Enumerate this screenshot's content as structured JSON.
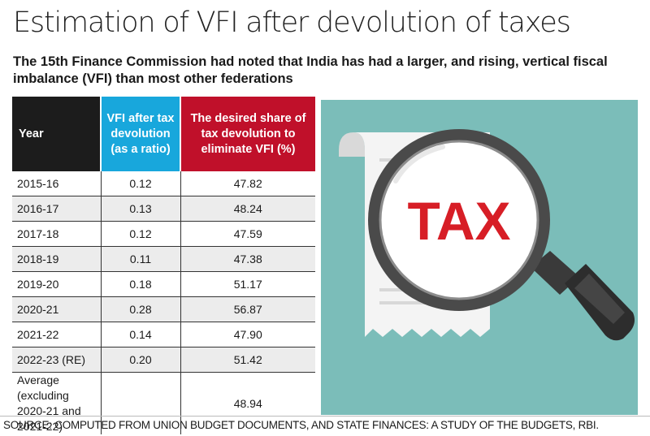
{
  "header": {
    "title": "Estimation of VFI after devolution of taxes",
    "subtitle": "The 15th Finance Commission had noted that India has had a larger, and rising, vertical fiscal imbalance (VFI) than most other federations"
  },
  "chart_data": {
    "type": "table",
    "columns": [
      "Year",
      "VFI after tax devolution (as a ratio)",
      "The desired share of tax devolution to eliminate VFI (%)"
    ],
    "column_colors": [
      "#1c1c1c",
      "#18a7dc",
      "#c0102a"
    ],
    "rows": [
      [
        "2015-16",
        "0.12",
        "47.82"
      ],
      [
        "2016-17",
        "0.13",
        "48.24"
      ],
      [
        "2017-18",
        "0.12",
        "47.59"
      ],
      [
        "2018-19",
        "0.11",
        "47.38"
      ],
      [
        "2019-20",
        "0.18",
        "51.17"
      ],
      [
        "2020-21",
        "0.28",
        "56.87"
      ],
      [
        "2021-22",
        "0.14",
        "47.90"
      ],
      [
        "2022-23 (RE)",
        "0.20",
        "51.42"
      ]
    ],
    "average_row": {
      "label": "Average (excluding 2020-21 and 2021-22)",
      "vfi": "",
      "share": "48.94"
    }
  },
  "illustration": {
    "icon": "magnifier-over-tax-receipt-icon",
    "text": "TAX",
    "background": "#7bbdb9"
  },
  "footer": {
    "source": "SOURCE: COMPUTED FROM UNION BUDGET DOCUMENTS, AND STATE FINANCES: A STUDY OF THE BUDGETS, RBI."
  }
}
